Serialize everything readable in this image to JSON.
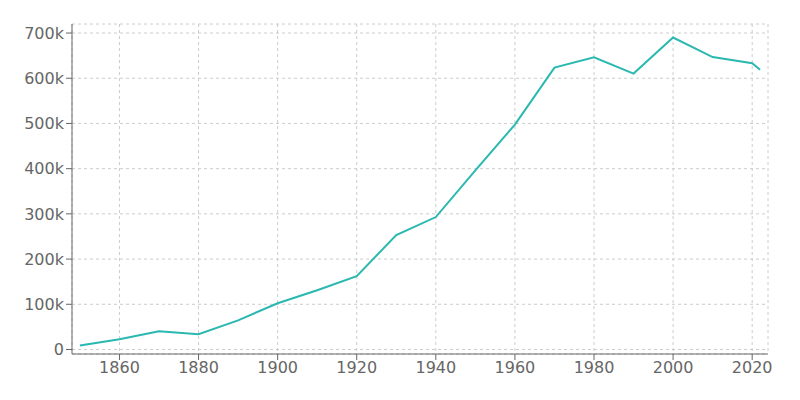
{
  "chart_data": {
    "type": "line",
    "x": [
      1850,
      1860,
      1870,
      1880,
      1890,
      1900,
      1910,
      1920,
      1930,
      1940,
      1950,
      1960,
      1970,
      1980,
      1990,
      2000,
      2010,
      2020,
      2022
    ],
    "values": [
      8841,
      22623,
      40226,
      33592,
      64495,
      102320,
      131105,
      162351,
      253143,
      292942,
      396000,
      497524,
      623530,
      646356,
      610337,
      690000,
      646889,
      633104,
      618639
    ],
    "color": "#2ab8b0",
    "xlim": [
      1848,
      2024
    ],
    "ylim": [
      -10000,
      720000
    ],
    "xticks": [
      1860,
      1880,
      1900,
      1920,
      1940,
      1960,
      1980,
      2000,
      2020
    ],
    "yticks": [
      0,
      {
        "value": 100000,
        "label": "100k"
      },
      {
        "value": 200000,
        "label": "200k"
      },
      {
        "value": 300000,
        "label": "300k"
      },
      {
        "value": 400000,
        "label": "400k"
      },
      {
        "value": 500000,
        "label": "500k"
      },
      {
        "value": 600000,
        "label": "600k"
      },
      {
        "value": 700000,
        "label": "700k"
      }
    ],
    "grid": true
  }
}
